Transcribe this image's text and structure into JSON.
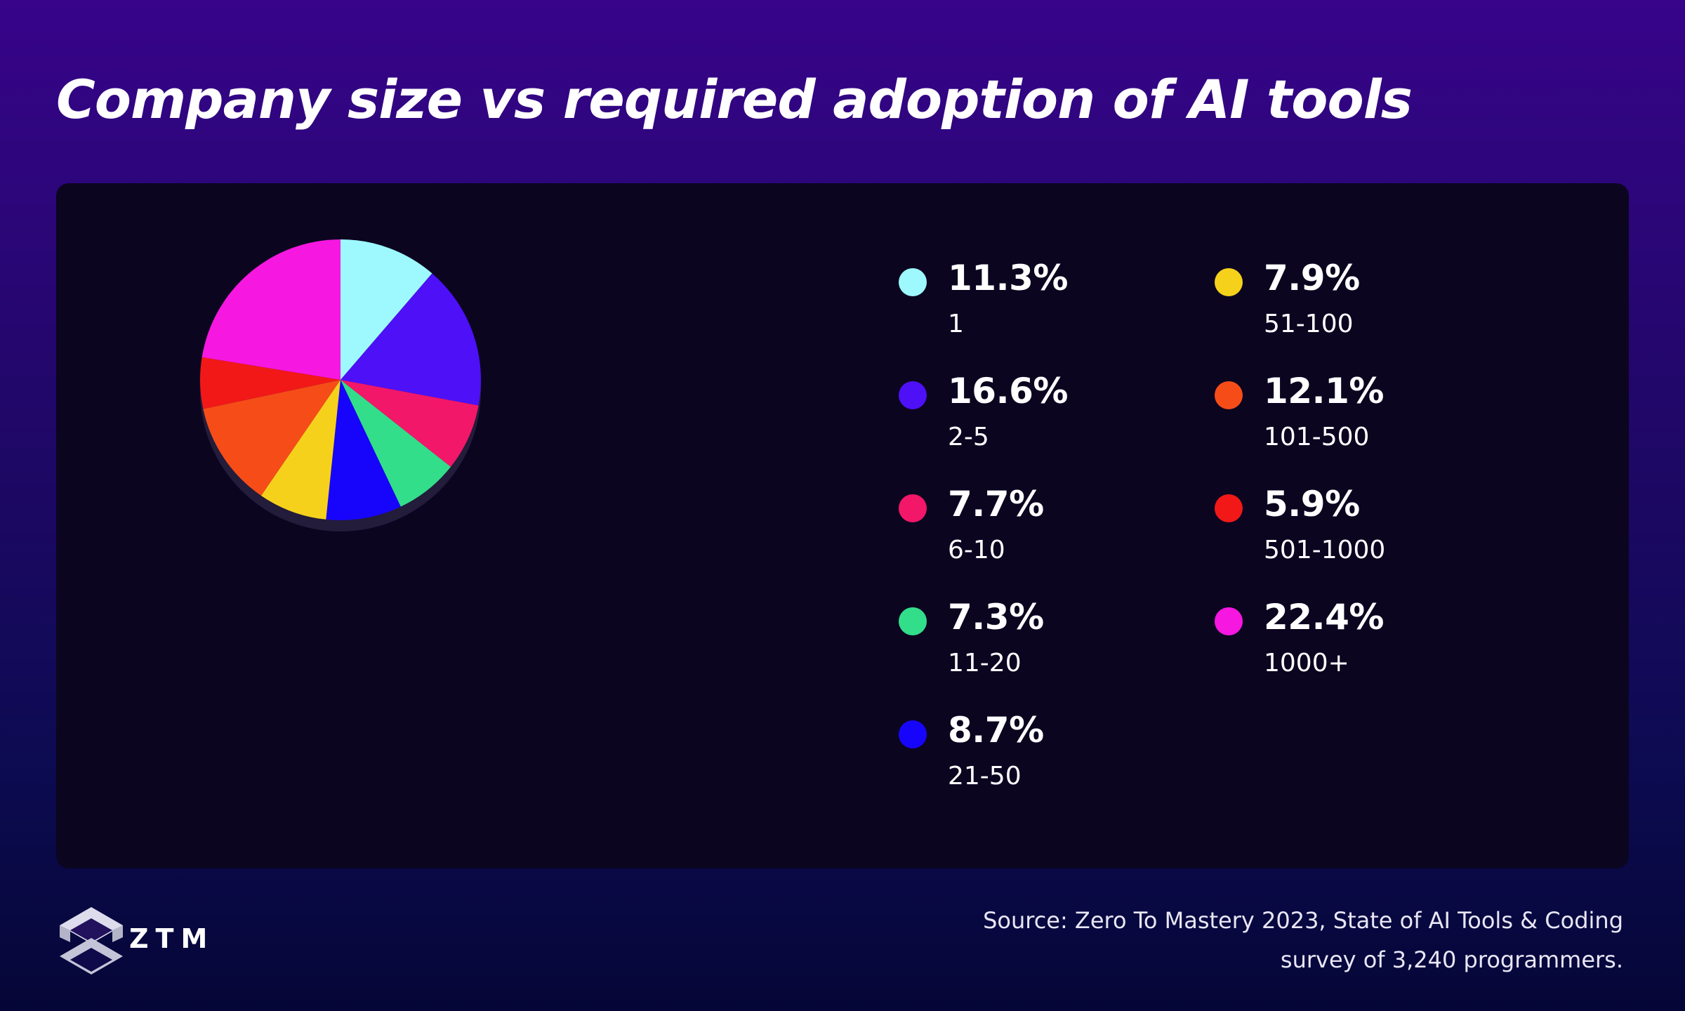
{
  "title": "Company size vs required adoption of AI tools",
  "chart_data": {
    "type": "pie",
    "title": "Company size vs required adoption of AI tools",
    "slices": [
      {
        "label": "1",
        "value": 11.3,
        "display": "11.3%",
        "color": "#9ef9ff"
      },
      {
        "label": "2-5",
        "value": 16.6,
        "display": "16.6%",
        "color": "#4d10f7"
      },
      {
        "label": "6-10",
        "value": 7.7,
        "display": "7.7%",
        "color": "#f31769"
      },
      {
        "label": "11-20",
        "value": 7.3,
        "display": "7.3%",
        "color": "#33de8b"
      },
      {
        "label": "21-50",
        "value": 8.7,
        "display": "8.7%",
        "color": "#1705fb"
      },
      {
        "label": "51-100",
        "value": 7.9,
        "display": "7.9%",
        "color": "#f6d11c"
      },
      {
        "label": "101-500",
        "value": 12.1,
        "display": "12.1%",
        "color": "#f64d18"
      },
      {
        "label": "501-1000",
        "value": 5.9,
        "display": "5.9%",
        "color": "#f21818"
      },
      {
        "label": "1000+",
        "value": 22.4,
        "display": "22.4%",
        "color": "#f617e1"
      }
    ],
    "start_angle": "12 o'clock",
    "direction": "clockwise",
    "legend_position": "right"
  },
  "brand": {
    "logo_text": "ZTM",
    "logo_icon": "stacked-cube-icon"
  },
  "source": {
    "line1": "Source: Zero To Mastery 2023, State of AI Tools & Coding",
    "line2": "survey of 3,240 programmers."
  },
  "colors": {
    "background_top": "#37048a",
    "background_bottom": "#050637",
    "panel": "#0b0520",
    "pie_shadow": "#231c3a"
  }
}
